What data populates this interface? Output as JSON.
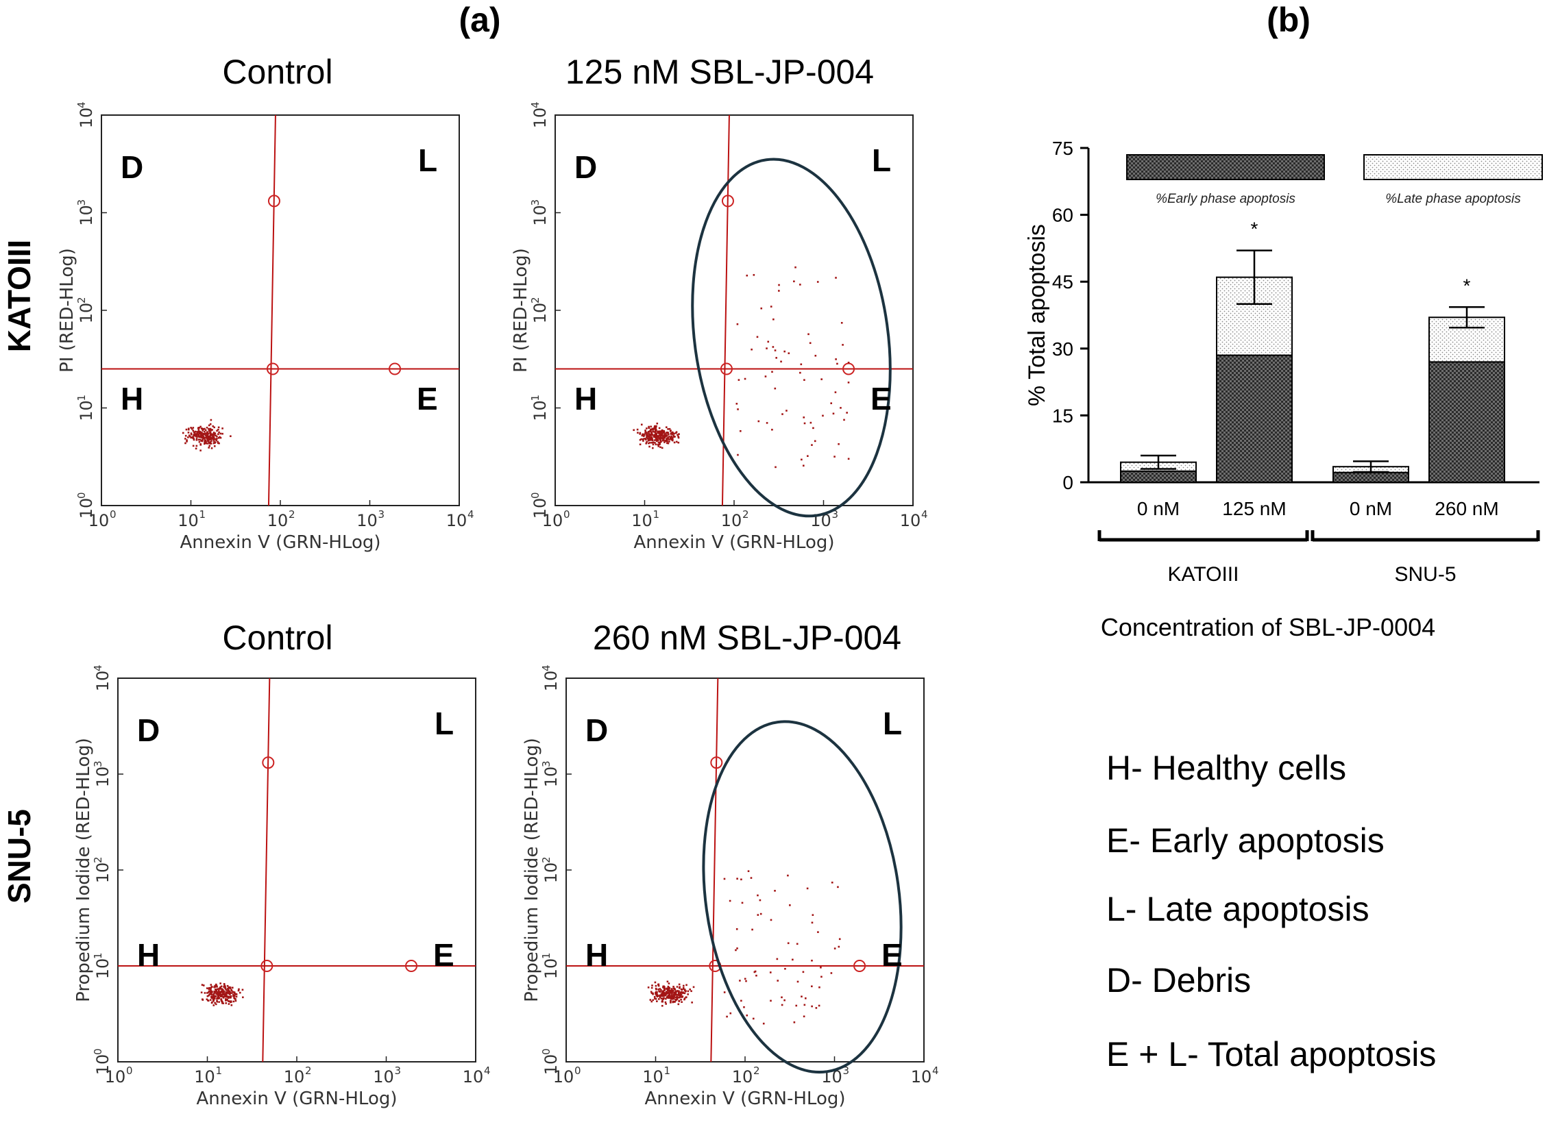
{
  "panel_labels": {
    "a": "(a)",
    "b": "(b)"
  },
  "row_labels": {
    "top": "KATOIII",
    "bottom": "SNU-5"
  },
  "quadrant_letters": {
    "debris": "D",
    "late": "L",
    "healthy": "H",
    "early": "E"
  },
  "flow_tick_base": "10",
  "flow_tick_exps": [
    "0",
    "1",
    "2",
    "3",
    "4"
  ],
  "flow_plots": [
    {
      "id": "katoiii-control",
      "title": "Control",
      "xlabel": "Annexin V (GRN-HLog)",
      "ylabel": "PI (RED-HLog)",
      "gate": [
        1.9,
        1.4
      ],
      "ellipse": false
    },
    {
      "id": "katoiii-125",
      "title": "125 nM SBL-JP-004",
      "xlabel": "Annexin V (GRN-HLog)",
      "ylabel": "PI (RED-HLog)",
      "gate": [
        1.9,
        1.4
      ],
      "ellipse": true
    },
    {
      "id": "snu5-control",
      "title": "Control",
      "xlabel": "Annexin V (GRN-HLog)",
      "ylabel": "Propedium Iodide (RED-HLog)",
      "gate": [
        1.65,
        1.0
      ],
      "ellipse": false
    },
    {
      "id": "snu5-260",
      "title": "260 nM SBL-JP-004",
      "xlabel": "Annexin V (GRN-HLog)",
      "ylabel": "Propedium Iodide (RED-HLog)",
      "gate": [
        1.65,
        1.0
      ],
      "ellipse": true
    }
  ],
  "chart_data": {
    "type": "bar",
    "stacked": true,
    "categories": [
      "0 nM",
      "125 nM",
      "0 nM",
      "260 nM"
    ],
    "groups": [
      {
        "label": "KATOIII",
        "categories": [
          "0 nM",
          "125 nM"
        ]
      },
      {
        "label": "SNU-5",
        "categories": [
          "0 nM",
          "260 nM"
        ]
      }
    ],
    "series": [
      {
        "name": "%Early phase apoptosis",
        "values": [
          2.5,
          28.5,
          2.2,
          27
        ]
      },
      {
        "name": "%Late phase apoptosis",
        "values": [
          2,
          17.5,
          1.3,
          10
        ]
      }
    ],
    "error_bars": [
      1.5,
      6,
      1.2,
      2.3
    ],
    "significance": [
      "",
      "*",
      "",
      "*"
    ],
    "ylabel": "% Total apoptosis",
    "xlabel": "Concentration of SBL-JP-0004",
    "ylim": [
      0,
      75
    ],
    "yticks": [
      "0",
      "15",
      "30",
      "45",
      "60",
      "75"
    ]
  },
  "key": [
    "H- Healthy cells",
    "E- Early apoptosis",
    "L- Late apoptosis",
    "D- Debris",
    "E + L- Total apoptosis"
  ]
}
